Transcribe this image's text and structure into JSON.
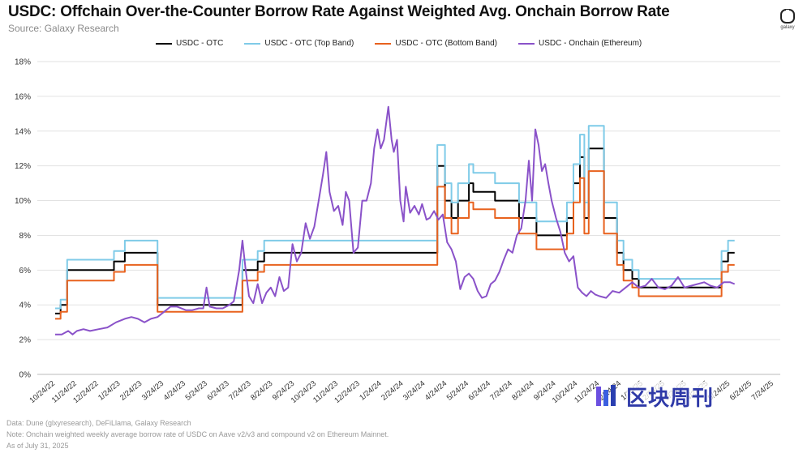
{
  "header": {
    "title": "USDC: Offchain Over-the-Counter Borrow Rate Against Weighted Avg. Onchain Borrow Rate",
    "subtitle": "Source: Galaxy Research",
    "logo_text": "galaxy"
  },
  "footer": {
    "line1": "Data: Dune (glxyresearch), DeFiLlama, Galaxy Research",
    "line2": "Note: Onchain weighted weekly average borrow rate of USDC on Aave v2/v3 and compound v2 on Ethereum Mainnet.",
    "line3": "As of July 31, 2025"
  },
  "watermark": {
    "text": "区块周刊",
    "color": "#2f3aa8"
  },
  "chart_data": {
    "type": "line",
    "x_ticks": [
      "10/24/22",
      "11/24/22",
      "12/24/22",
      "1/24/23",
      "2/24/23",
      "3/24/23",
      "4/24/23",
      "5/24/23",
      "6/24/23",
      "7/24/23",
      "8/24/23",
      "9/24/23",
      "10/24/23",
      "11/24/23",
      "12/24/23",
      "1/24/24",
      "2/24/24",
      "3/24/24",
      "4/24/24",
      "5/24/24",
      "6/24/24",
      "7/24/24",
      "8/24/24",
      "9/24/24",
      "10/24/24",
      "11/24/24",
      "12/24/24",
      "1/24/25",
      "2/24/25",
      "3/24/25",
      "4/24/25",
      "5/24/25",
      "6/24/25",
      "7/24/25"
    ],
    "y_ticks": [
      "0%",
      "2%",
      "4%",
      "6%",
      "8%",
      "10%",
      "12%",
      "14%",
      "16%",
      "18%"
    ],
    "ylim": [
      0,
      18
    ],
    "grid": true,
    "legend_position": "top",
    "series": [
      {
        "name": "USDC - OTC",
        "color": "#000000",
        "step": true,
        "points": [
          [
            0,
            3.5
          ],
          [
            0.15,
            3.5
          ],
          [
            0.25,
            4.0
          ],
          [
            0.55,
            6.0
          ],
          [
            2.7,
            6.5
          ],
          [
            3.2,
            7.0
          ],
          [
            4.7,
            4.0
          ],
          [
            8.5,
            4.0
          ],
          [
            8.6,
            6.0
          ],
          [
            9.3,
            6.5
          ],
          [
            9.6,
            7.0
          ],
          [
            17.5,
            7.0
          ],
          [
            17.55,
            12.0
          ],
          [
            17.9,
            10.0
          ],
          [
            18.2,
            9.0
          ],
          [
            18.5,
            10.0
          ],
          [
            19.0,
            11.0
          ],
          [
            19.2,
            10.5
          ],
          [
            20.2,
            10.0
          ],
          [
            21.3,
            9.0
          ],
          [
            22.1,
            8.0
          ],
          [
            23.5,
            9.0
          ],
          [
            23.8,
            11.0
          ],
          [
            24.1,
            12.5
          ],
          [
            24.3,
            9.0
          ],
          [
            24.5,
            13.0
          ],
          [
            25.2,
            9.0
          ],
          [
            25.8,
            7.0
          ],
          [
            26.1,
            6.0
          ],
          [
            26.5,
            5.5
          ],
          [
            26.8,
            5.0
          ],
          [
            30.6,
            6.5
          ],
          [
            30.9,
            7.0
          ],
          [
            31.2,
            7.0
          ]
        ]
      },
      {
        "name": "USDC - OTC (Top Band)",
        "color": "#7fcbe8",
        "step": true,
        "points": [
          [
            0,
            3.8
          ],
          [
            0.15,
            3.8
          ],
          [
            0.25,
            4.3
          ],
          [
            0.55,
            6.6
          ],
          [
            2.7,
            7.1
          ],
          [
            3.2,
            7.7
          ],
          [
            4.7,
            4.4
          ],
          [
            8.5,
            4.4
          ],
          [
            8.6,
            6.6
          ],
          [
            9.3,
            7.1
          ],
          [
            9.6,
            7.7
          ],
          [
            17.5,
            7.7
          ],
          [
            17.55,
            13.2
          ],
          [
            17.9,
            11.0
          ],
          [
            18.2,
            9.9
          ],
          [
            18.5,
            11.0
          ],
          [
            19.0,
            12.1
          ],
          [
            19.2,
            11.6
          ],
          [
            20.2,
            11.0
          ],
          [
            21.3,
            9.9
          ],
          [
            22.1,
            8.8
          ],
          [
            23.5,
            9.9
          ],
          [
            23.8,
            12.1
          ],
          [
            24.1,
            13.8
          ],
          [
            24.3,
            9.9
          ],
          [
            24.5,
            14.3
          ],
          [
            25.2,
            9.9
          ],
          [
            25.8,
            7.7
          ],
          [
            26.1,
            6.6
          ],
          [
            26.5,
            6.0
          ],
          [
            26.8,
            5.5
          ],
          [
            30.6,
            7.1
          ],
          [
            30.9,
            7.7
          ],
          [
            31.2,
            7.7
          ]
        ]
      },
      {
        "name": "USDC - OTC (Bottom Band)",
        "color": "#e8621e",
        "step": true,
        "points": [
          [
            0,
            3.2
          ],
          [
            0.15,
            3.2
          ],
          [
            0.25,
            3.6
          ],
          [
            0.55,
            5.4
          ],
          [
            2.7,
            5.9
          ],
          [
            3.2,
            6.3
          ],
          [
            4.7,
            3.6
          ],
          [
            8.5,
            3.6
          ],
          [
            8.6,
            5.4
          ],
          [
            9.3,
            5.9
          ],
          [
            9.6,
            6.3
          ],
          [
            17.5,
            6.3
          ],
          [
            17.55,
            10.8
          ],
          [
            17.9,
            9.0
          ],
          [
            18.2,
            8.1
          ],
          [
            18.5,
            9.0
          ],
          [
            19.0,
            9.9
          ],
          [
            19.2,
            9.5
          ],
          [
            20.2,
            9.0
          ],
          [
            21.3,
            8.1
          ],
          [
            22.1,
            7.2
          ],
          [
            23.5,
            8.1
          ],
          [
            23.8,
            9.9
          ],
          [
            24.1,
            11.3
          ],
          [
            24.3,
            8.1
          ],
          [
            24.5,
            11.7
          ],
          [
            25.2,
            8.1
          ],
          [
            25.8,
            6.3
          ],
          [
            26.1,
            5.4
          ],
          [
            26.5,
            5.0
          ],
          [
            26.8,
            4.5
          ],
          [
            30.6,
            5.9
          ],
          [
            30.9,
            6.3
          ],
          [
            31.2,
            6.3
          ]
        ]
      },
      {
        "name": "USDC - Onchain (Ethereum)",
        "color": "#8a52c9",
        "step": false,
        "points": [
          [
            0,
            2.3
          ],
          [
            0.3,
            2.3
          ],
          [
            0.6,
            2.5
          ],
          [
            0.8,
            2.3
          ],
          [
            1.0,
            2.5
          ],
          [
            1.3,
            2.6
          ],
          [
            1.6,
            2.5
          ],
          [
            2.0,
            2.6
          ],
          [
            2.4,
            2.7
          ],
          [
            2.8,
            3.0
          ],
          [
            3.2,
            3.2
          ],
          [
            3.5,
            3.3
          ],
          [
            3.8,
            3.2
          ],
          [
            4.1,
            3.0
          ],
          [
            4.4,
            3.2
          ],
          [
            4.7,
            3.3
          ],
          [
            5.0,
            3.6
          ],
          [
            5.3,
            3.9
          ],
          [
            5.6,
            3.9
          ],
          [
            6.0,
            3.7
          ],
          [
            6.3,
            3.7
          ],
          [
            6.6,
            3.8
          ],
          [
            6.8,
            3.8
          ],
          [
            6.95,
            5.0
          ],
          [
            7.1,
            3.9
          ],
          [
            7.4,
            3.8
          ],
          [
            7.7,
            3.8
          ],
          [
            8.0,
            4.0
          ],
          [
            8.2,
            4.2
          ],
          [
            8.45,
            6.0
          ],
          [
            8.6,
            7.7
          ],
          [
            8.75,
            6.0
          ],
          [
            8.9,
            4.5
          ],
          [
            9.1,
            4.1
          ],
          [
            9.3,
            5.2
          ],
          [
            9.5,
            4.1
          ],
          [
            9.7,
            4.7
          ],
          [
            9.9,
            5.0
          ],
          [
            10.1,
            4.5
          ],
          [
            10.3,
            5.6
          ],
          [
            10.5,
            4.8
          ],
          [
            10.7,
            5.0
          ],
          [
            10.9,
            7.5
          ],
          [
            11.1,
            6.5
          ],
          [
            11.3,
            7.0
          ],
          [
            11.5,
            8.7
          ],
          [
            11.7,
            7.8
          ],
          [
            11.9,
            8.5
          ],
          [
            12.1,
            10.0
          ],
          [
            12.3,
            11.5
          ],
          [
            12.45,
            12.8
          ],
          [
            12.6,
            10.5
          ],
          [
            12.8,
            9.4
          ],
          [
            13.0,
            9.7
          ],
          [
            13.2,
            8.6
          ],
          [
            13.35,
            10.5
          ],
          [
            13.5,
            10.0
          ],
          [
            13.7,
            7.0
          ],
          [
            13.9,
            7.3
          ],
          [
            14.1,
            10.0
          ],
          [
            14.3,
            10.0
          ],
          [
            14.5,
            11.0
          ],
          [
            14.65,
            13.0
          ],
          [
            14.8,
            14.1
          ],
          [
            14.95,
            13.0
          ],
          [
            15.1,
            13.5
          ],
          [
            15.3,
            15.4
          ],
          [
            15.45,
            13.5
          ],
          [
            15.55,
            12.8
          ],
          [
            15.7,
            13.5
          ],
          [
            15.85,
            10.0
          ],
          [
            16.0,
            8.8
          ],
          [
            16.1,
            10.8
          ],
          [
            16.3,
            9.3
          ],
          [
            16.5,
            9.7
          ],
          [
            16.7,
            9.2
          ],
          [
            16.85,
            9.8
          ],
          [
            17.05,
            8.9
          ],
          [
            17.2,
            9.0
          ],
          [
            17.4,
            9.4
          ],
          [
            17.6,
            8.9
          ],
          [
            17.8,
            9.2
          ],
          [
            18.0,
            7.6
          ],
          [
            18.2,
            7.2
          ],
          [
            18.4,
            6.5
          ],
          [
            18.6,
            4.9
          ],
          [
            18.8,
            5.6
          ],
          [
            19.0,
            5.8
          ],
          [
            19.2,
            5.5
          ],
          [
            19.4,
            4.8
          ],
          [
            19.6,
            4.4
          ],
          [
            19.8,
            4.5
          ],
          [
            20.0,
            5.2
          ],
          [
            20.2,
            5.4
          ],
          [
            20.4,
            5.9
          ],
          [
            20.6,
            6.6
          ],
          [
            20.8,
            7.2
          ],
          [
            21.0,
            7.0
          ],
          [
            21.2,
            8.0
          ],
          [
            21.4,
            8.4
          ],
          [
            21.6,
            10.0
          ],
          [
            21.75,
            12.3
          ],
          [
            21.9,
            10.0
          ],
          [
            22.05,
            14.1
          ],
          [
            22.2,
            13.2
          ],
          [
            22.35,
            11.7
          ],
          [
            22.5,
            12.1
          ],
          [
            22.65,
            11.0
          ],
          [
            22.8,
            10.0
          ],
          [
            23.0,
            9.0
          ],
          [
            23.2,
            8.2
          ],
          [
            23.4,
            7.0
          ],
          [
            23.6,
            6.5
          ],
          [
            23.8,
            6.8
          ],
          [
            24.0,
            5.0
          ],
          [
            24.2,
            4.7
          ],
          [
            24.4,
            4.5
          ],
          [
            24.6,
            4.8
          ],
          [
            24.8,
            4.6
          ],
          [
            25.0,
            4.5
          ],
          [
            25.3,
            4.4
          ],
          [
            25.6,
            4.8
          ],
          [
            25.9,
            4.7
          ],
          [
            26.2,
            5.0
          ],
          [
            26.5,
            5.3
          ],
          [
            26.8,
            5.0
          ],
          [
            27.1,
            5.1
          ],
          [
            27.4,
            5.5
          ],
          [
            27.7,
            5.0
          ],
          [
            28.0,
            4.9
          ],
          [
            28.3,
            5.1
          ],
          [
            28.6,
            5.6
          ],
          [
            28.9,
            5.0
          ],
          [
            29.2,
            5.1
          ],
          [
            29.5,
            5.2
          ],
          [
            29.8,
            5.3
          ],
          [
            30.1,
            5.1
          ],
          [
            30.4,
            5.0
          ],
          [
            30.7,
            5.3
          ],
          [
            31.0,
            5.3
          ],
          [
            31.2,
            5.2
          ]
        ]
      }
    ]
  }
}
